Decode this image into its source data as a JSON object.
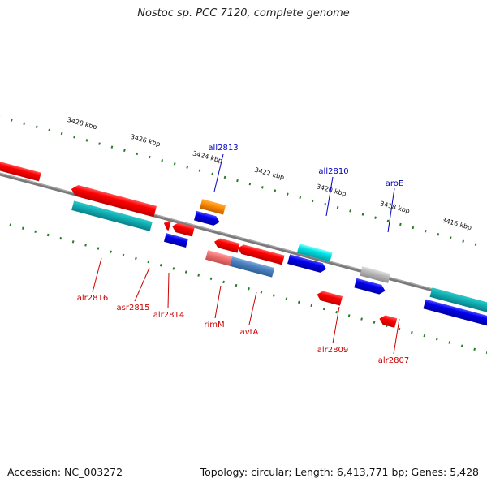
{
  "title": "Nostoc sp. PCC 7120, complete genome",
  "footer": {
    "accession": "Accession: NC_003272",
    "summary": "Topology: circular; Length: 6,413,771 bp; Genes: 5,428"
  },
  "ruler_labels": [
    "3428 kbp",
    "3426 kbp",
    "3424 kbp",
    "3422 kbp",
    "3420 kbp",
    "3418 kbp",
    "3416 kbp"
  ],
  "gene_labels": {
    "above": [
      "all2813",
      "all2810",
      "aroE"
    ],
    "below": [
      "alr2816",
      "asr2815",
      "alr2814",
      "rimM",
      "avtA",
      "alr2809",
      "alr2807"
    ]
  },
  "colors": {
    "forward_gene": "#ff0000",
    "reverse_gene": "#0000ee",
    "forward_label": "#cc0000",
    "reverse_label": "#0000bb",
    "tick": "#2a7a2a",
    "backbone": "#808080"
  }
}
